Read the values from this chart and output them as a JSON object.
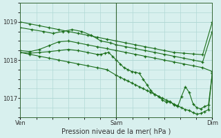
{
  "title": "Pression niveau de la mer( hPa )",
  "bg_color": "#d8f0ee",
  "grid_color": "#b0d8d5",
  "line_color": "#1a6e1a",
  "ylim": [
    1016.7,
    1019.4
  ],
  "yticks": [
    1017,
    1018,
    1019
  ],
  "xtick_labels": [
    "Ven",
    "Sam",
    "Dim"
  ],
  "xtick_positions": [
    0,
    0.5,
    1.0
  ],
  "lines": [
    {
      "x": [
        0.0,
        0.05,
        0.1,
        0.15,
        0.2,
        0.25,
        0.3,
        0.35,
        0.4,
        0.45,
        0.5,
        0.55,
        0.6,
        0.65,
        0.7,
        0.75,
        0.8,
        0.85,
        0.9,
        0.95,
        1.0
      ],
      "y": [
        1019.0,
        1018.95,
        1018.9,
        1018.85,
        1018.8,
        1018.75,
        1018.7,
        1018.65,
        1018.6,
        1018.55,
        1018.5,
        1018.45,
        1018.4,
        1018.35,
        1018.3,
        1018.25,
        1018.2,
        1018.18,
        1018.16,
        1018.14,
        1019.0
      ]
    },
    {
      "x": [
        0.0,
        0.06,
        0.12,
        0.17,
        0.22,
        0.27,
        0.32,
        0.37,
        0.42,
        0.47,
        0.5,
        0.55,
        0.6,
        0.65,
        0.7,
        0.75,
        0.8,
        0.85,
        0.9,
        0.95,
        1.0
      ],
      "y": [
        1018.85,
        1018.8,
        1018.75,
        1018.7,
        1018.75,
        1018.8,
        1018.75,
        1018.65,
        1018.5,
        1018.45,
        1018.4,
        1018.35,
        1018.3,
        1018.25,
        1018.2,
        1018.15,
        1018.1,
        1018.05,
        1018.0,
        1017.95,
        1018.75
      ]
    },
    {
      "x": [
        0.0,
        0.05,
        0.1,
        0.15,
        0.2,
        0.25,
        0.3,
        0.35,
        0.4,
        0.45,
        0.5,
        0.55,
        0.6,
        0.65,
        0.7,
        0.75,
        0.8,
        0.85,
        0.9,
        0.95,
        1.0
      ],
      "y": [
        1018.25,
        1018.22,
        1018.28,
        1018.38,
        1018.48,
        1018.5,
        1018.45,
        1018.4,
        1018.35,
        1018.3,
        1018.25,
        1018.2,
        1018.15,
        1018.1,
        1018.05,
        1018.0,
        1017.95,
        1017.9,
        1017.85,
        1017.8,
        1017.7
      ]
    },
    {
      "x": [
        0.0,
        0.05,
        0.1,
        0.15,
        0.2,
        0.25,
        0.3,
        0.35,
        0.4,
        0.42,
        0.44,
        0.46,
        0.48,
        0.5,
        0.52,
        0.54,
        0.56,
        0.58,
        0.6,
        0.62,
        0.64,
        0.66,
        0.68,
        0.7,
        0.72,
        0.74,
        0.76,
        0.78,
        0.8,
        0.82,
        0.84,
        0.86,
        0.88,
        0.9,
        0.92,
        0.94,
        0.96,
        0.98,
        1.0
      ],
      "y": [
        1018.2,
        1018.18,
        1018.2,
        1018.22,
        1018.25,
        1018.28,
        1018.25,
        1018.2,
        1018.15,
        1018.15,
        1018.18,
        1018.2,
        1018.1,
        1018.0,
        1017.9,
        1017.8,
        1017.75,
        1017.7,
        1017.68,
        1017.65,
        1017.5,
        1017.35,
        1017.2,
        1017.1,
        1017.05,
        1016.95,
        1016.9,
        1016.92,
        1016.82,
        1016.78,
        1017.05,
        1017.3,
        1017.15,
        1016.85,
        1016.75,
        1016.72,
        1016.78,
        1016.82,
        1017.65
      ]
    },
    {
      "x": [
        0.0,
        0.05,
        0.1,
        0.15,
        0.2,
        0.25,
        0.3,
        0.35,
        0.4,
        0.45,
        0.5,
        0.52,
        0.54,
        0.56,
        0.58,
        0.6,
        0.62,
        0.64,
        0.66,
        0.68,
        0.7,
        0.72,
        0.74,
        0.76,
        0.78,
        0.8,
        0.82,
        0.84,
        0.86,
        0.88,
        0.9,
        0.92,
        0.94,
        0.96,
        0.98,
        1.0
      ],
      "y": [
        1018.2,
        1018.15,
        1018.1,
        1018.05,
        1018.0,
        1017.95,
        1017.9,
        1017.85,
        1017.8,
        1017.75,
        1017.6,
        1017.55,
        1017.5,
        1017.45,
        1017.4,
        1017.35,
        1017.3,
        1017.25,
        1017.2,
        1017.15,
        1017.1,
        1017.05,
        1017.0,
        1016.95,
        1016.9,
        1016.85,
        1016.8,
        1016.75,
        1016.7,
        1016.68,
        1016.62,
        1016.58,
        1016.6,
        1016.65,
        1016.7,
        1017.65
      ]
    }
  ]
}
